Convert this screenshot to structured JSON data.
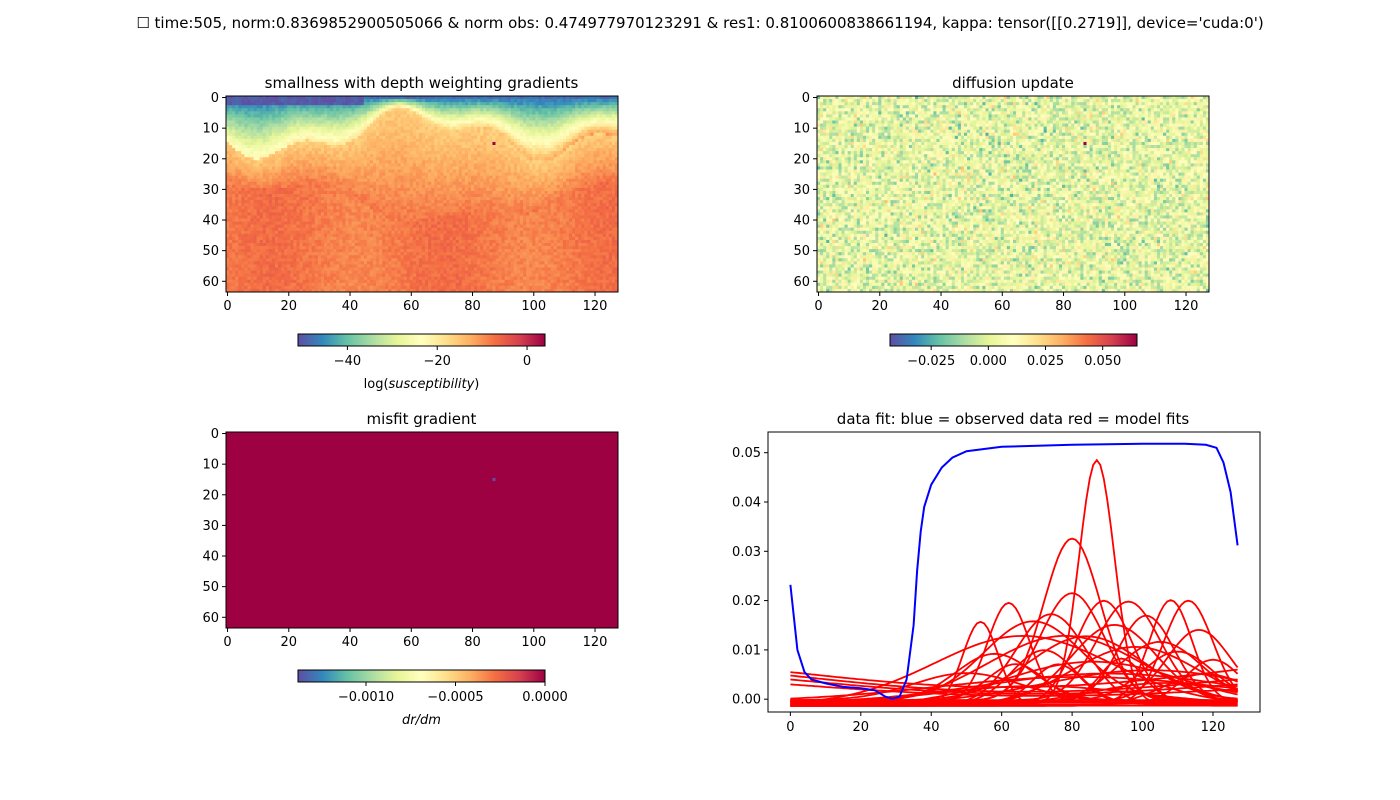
{
  "figure_title": "☐ time:505, norm:0.8369852900505066 & norm obs: 0.474977970123291 & res1: 0.8100600838661194, kappa: tensor([[0.2719]], device='cuda:0')",
  "colormap": [
    "#5e4fa2",
    "#3288bd",
    "#66c2a5",
    "#abdda4",
    "#e6f598",
    "#ffffbf",
    "#fee08b",
    "#fdae61",
    "#f46d43",
    "#d53e4f",
    "#9e0142"
  ],
  "chart_data": [
    {
      "type": "heatmap",
      "title": "smallness with depth weighting gradients",
      "x_ticks": [
        "0",
        "20",
        "40",
        "60",
        "80",
        "100",
        "120"
      ],
      "y_ticks": [
        "0",
        "10",
        "20",
        "30",
        "40",
        "50",
        "60"
      ],
      "xlim": [
        -0.5,
        127.5
      ],
      "ylim": [
        63.5,
        -0.5
      ],
      "grid_shape": [
        64,
        128
      ],
      "colorbar": {
        "ticks": [
          "−40",
          "−20",
          "0"
        ],
        "tick_values": [
          -40,
          -20,
          0
        ],
        "range": [
          -51,
          4
        ],
        "label": "log(susceptibility)"
      },
      "field": {
        "description": "smooth layered field: low (~-50) near top-left, rising to ~-5 in deeper rows",
        "top": -45,
        "bottom": -5
      },
      "hot_pixel": {
        "x": 87,
        "y": 15,
        "value": 4
      }
    },
    {
      "type": "heatmap",
      "title": "diffusion update",
      "x_ticks": [
        "0",
        "20",
        "40",
        "60",
        "80",
        "100",
        "120"
      ],
      "y_ticks": [
        "0",
        "10",
        "20",
        "30",
        "40",
        "50",
        "60"
      ],
      "xlim": [
        -0.5,
        127.5
      ],
      "ylim": [
        63.5,
        -0.5
      ],
      "grid_shape": [
        64,
        128
      ],
      "colorbar": {
        "ticks": [
          "−0.025",
          "0.000",
          "0.025",
          "0.050"
        ],
        "tick_values": [
          -0.025,
          0,
          0.025,
          0.05
        ],
        "range": [
          -0.043,
          0.065
        ],
        "label": ""
      },
      "field": {
        "description": "random noise centred near 0.0",
        "mean": 0.002,
        "spread": 0.012
      },
      "hot_pixel": {
        "x": 87,
        "y": 15,
        "value": 0.065
      }
    },
    {
      "type": "heatmap",
      "title": "misfit gradient",
      "x_ticks": [
        "0",
        "20",
        "40",
        "60",
        "80",
        "100",
        "120"
      ],
      "y_ticks": [
        "0",
        "10",
        "20",
        "30",
        "40",
        "50",
        "60"
      ],
      "xlim": [
        -0.5,
        127.5
      ],
      "ylim": [
        63.5,
        -0.5
      ],
      "grid_shape": [
        64,
        128
      ],
      "colorbar": {
        "ticks": [
          "−0.0010",
          "−0.0005",
          "0.0000"
        ],
        "tick_values": [
          -0.001,
          -0.0005,
          0
        ],
        "range": [
          -0.00138,
          0
        ],
        "label": "dr/dm"
      },
      "field": {
        "description": "uniform 0 everywhere except a single minimum pixel",
        "value": 0
      },
      "cold_pixel": {
        "x": 87,
        "y": 15,
        "value": -0.00138
      }
    },
    {
      "type": "line",
      "title": "data fit: blue = observed data  red = model fits",
      "x_ticks": [
        0,
        20,
        40,
        60,
        80,
        100,
        120
      ],
      "y_ticks": [
        "0.00",
        "0.01",
        "0.02",
        "0.03",
        "0.04",
        "0.05"
      ],
      "xlim": [
        -6.35,
        133.35
      ],
      "ylim": [
        -0.0026,
        0.0542
      ],
      "series": [
        {
          "color": "#0000ff",
          "points": [
            [
              0,
              0.0232
            ],
            [
              2,
              0.01
            ],
            [
              4,
              0.0055
            ],
            [
              6,
              0.004
            ],
            [
              10,
              0.0032
            ],
            [
              15,
              0.0025
            ],
            [
              20,
              0.0022
            ],
            [
              24,
              0.0018
            ],
            [
              27,
              0.0005
            ],
            [
              29,
              0.0001
            ],
            [
              31,
              0.0005
            ],
            [
              33,
              0.004
            ],
            [
              35,
              0.015
            ],
            [
              36,
              0.026
            ],
            [
              37,
              0.034
            ],
            [
              38,
              0.039
            ],
            [
              40,
              0.0435
            ],
            [
              43,
              0.047
            ],
            [
              46,
              0.049
            ],
            [
              50,
              0.0503
            ],
            [
              60,
              0.0512
            ],
            [
              80,
              0.0516
            ],
            [
              100,
              0.0518
            ],
            [
              112,
              0.0518
            ],
            [
              118,
              0.0516
            ],
            [
              121,
              0.051
            ],
            [
              123,
              0.048
            ],
            [
              125,
              0.042
            ],
            [
              127,
              0.0312
            ]
          ]
        }
      ],
      "model_fits": {
        "color": "#ff0000",
        "peaks": [
          {
            "center": 87,
            "amp": 0.0493,
            "width": 5.0
          },
          {
            "center": 80,
            "amp": 0.0328,
            "width": 8.0
          },
          {
            "center": 80,
            "amp": 0.022,
            "width": 9.0
          },
          {
            "center": 113,
            "amp": 0.0212,
            "width": 7.0
          },
          {
            "center": 89,
            "amp": 0.0213,
            "width": 8.0
          },
          {
            "center": 62,
            "amp": 0.0202,
            "width": 6.0
          },
          {
            "center": 96,
            "amp": 0.02,
            "width": 9.0
          },
          {
            "center": 108,
            "amp": 0.0207,
            "width": 6.0
          },
          {
            "center": 54,
            "amp": 0.017,
            "width": 5.0
          },
          {
            "center": 74,
            "amp": 0.0185,
            "width": 10.0
          },
          {
            "center": 101,
            "amp": 0.0175,
            "width": 8.0
          },
          {
            "center": 69,
            "amp": 0.016,
            "width": 14.0
          },
          {
            "center": 92,
            "amp": 0.0158,
            "width": 12.0
          },
          {
            "center": 78,
            "amp": 0.0142,
            "width": 22.0
          },
          {
            "center": 66,
            "amp": 0.014,
            "width": 25.0
          },
          {
            "center": 116,
            "amp": 0.0145,
            "width": 9.0
          },
          {
            "center": 84,
            "amp": 0.013,
            "width": 16.0
          },
          {
            "center": 105,
            "amp": 0.0125,
            "width": 12.0
          },
          {
            "center": 98,
            "amp": 0.012,
            "width": 18.0
          },
          {
            "center": 72,
            "amp": 0.011,
            "width": 9.0
          },
          {
            "center": 110,
            "amp": 0.01,
            "width": 10.0
          },
          {
            "center": 58,
            "amp": 0.0095,
            "width": 11.0
          },
          {
            "center": 120,
            "amp": 0.009,
            "width": 8.0
          },
          {
            "center": 86,
            "amp": 0.009,
            "width": 25.0
          },
          {
            "center": 76,
            "amp": 0.008,
            "width": 7.0
          },
          {
            "center": 94,
            "amp": 0.0085,
            "width": 6.0
          },
          {
            "center": 64,
            "amp": 0.0075,
            "width": 8.0
          },
          {
            "center": 102,
            "amp": 0.007,
            "width": 30.0
          },
          {
            "center": 118,
            "amp": 0.0065,
            "width": 12.0
          },
          {
            "center": 90,
            "amp": 0.006,
            "width": 35.0
          },
          {
            "center": 50,
            "amp": 0.0055,
            "width": 15.0
          },
          {
            "center": 82,
            "amp": 0.005,
            "width": 40.0
          },
          {
            "center": 106,
            "amp": 0.0045,
            "width": 20.0
          },
          {
            "center": 70,
            "amp": 0.004,
            "width": 30.0
          }
        ],
        "rising_lines": [
          {
            "start": 0.0055,
            "end": 0.006
          },
          {
            "start": 0.0048,
            "end": 0.004
          },
          {
            "start": 0.004,
            "end": 0.003
          },
          {
            "start": 0.003,
            "end": 0.002
          }
        ]
      }
    }
  ]
}
